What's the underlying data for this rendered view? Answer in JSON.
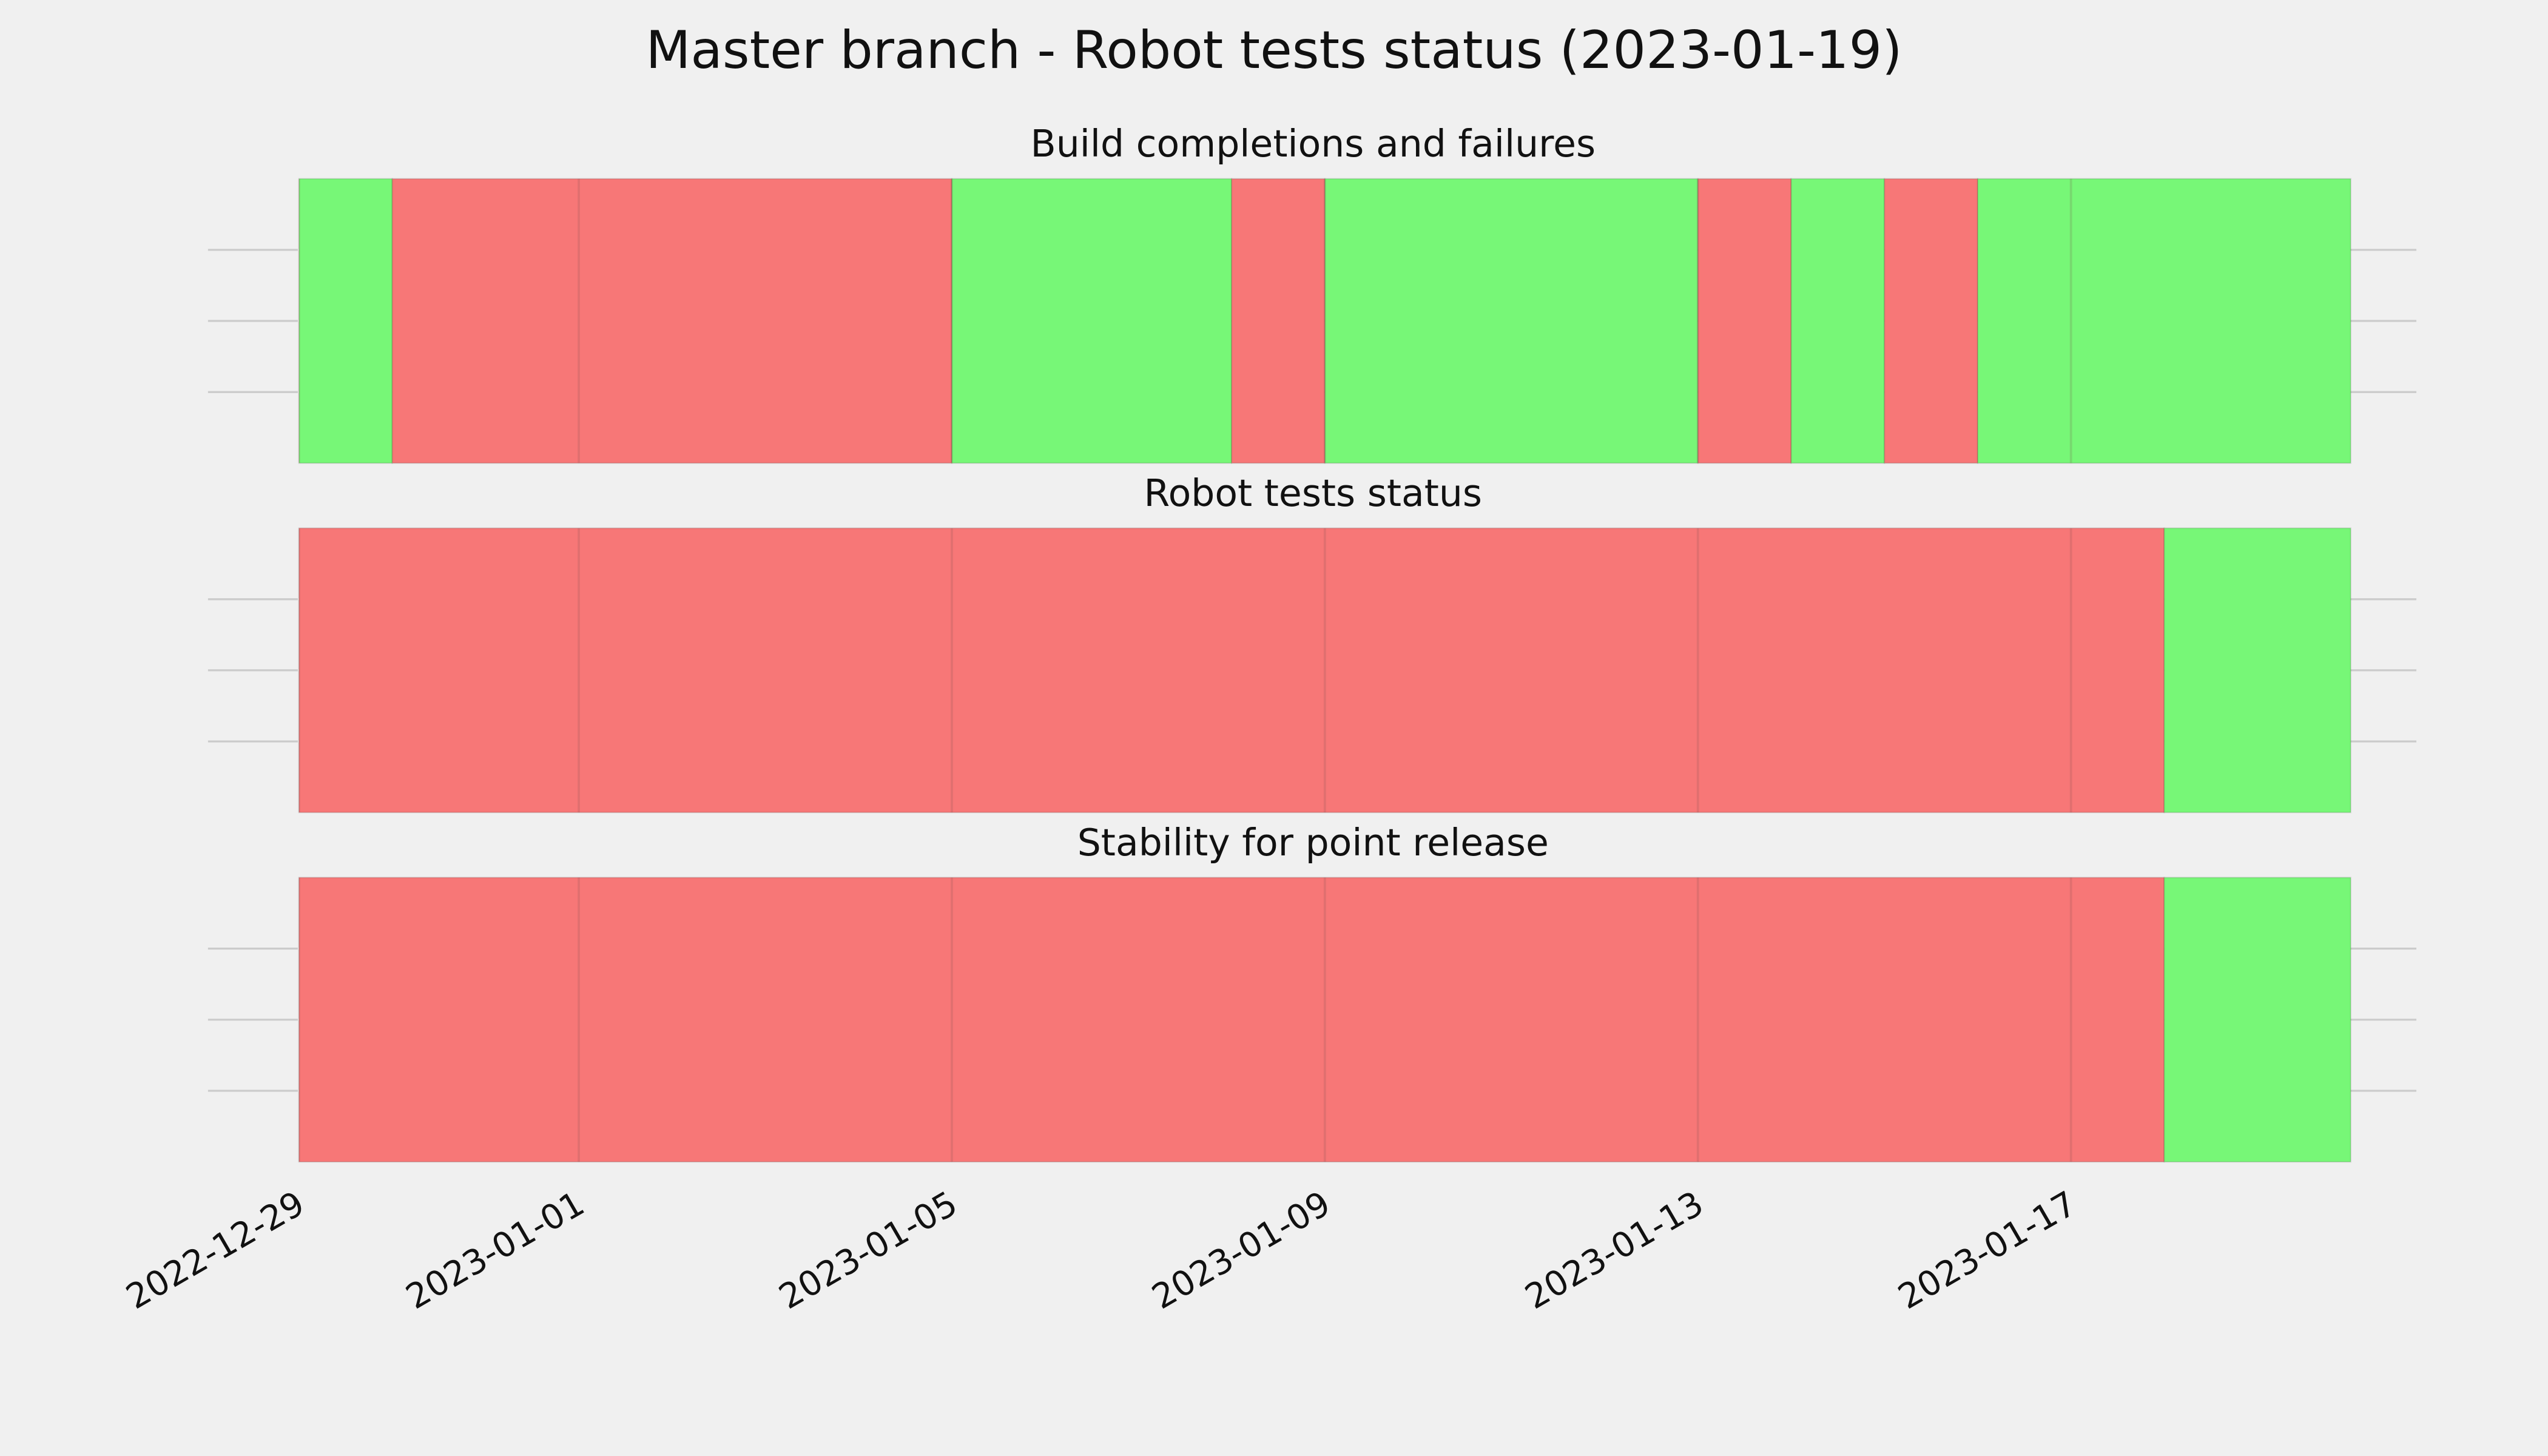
{
  "chart_data": {
    "type": "timeline",
    "title": "Master branch - Robot tests status (2023-01-19)",
    "xlim": [
      "2022-12-29",
      "2023-01-21"
    ],
    "xticks": [
      "2022-12-29",
      "2023-01-01",
      "2023-01-05",
      "2023-01-09",
      "2023-01-13",
      "2023-01-17"
    ],
    "ylim": [
      0,
      1
    ],
    "yticks": [
      0.25,
      0.5,
      0.75
    ],
    "grid": true,
    "panels": [
      {
        "title": "Build completions and failures",
        "segments": [
          {
            "start": "2022-12-29",
            "end": "2022-12-30",
            "color": "#77f777"
          },
          {
            "start": "2022-12-30",
            "end": "2023-01-05",
            "color": "#f77777"
          },
          {
            "start": "2023-01-05",
            "end": "2023-01-08",
            "color": "#77f777"
          },
          {
            "start": "2023-01-08",
            "end": "2023-01-09",
            "color": "#f77777"
          },
          {
            "start": "2023-01-09",
            "end": "2023-01-13",
            "color": "#77f777"
          },
          {
            "start": "2023-01-13",
            "end": "2023-01-14",
            "color": "#f77777"
          },
          {
            "start": "2023-01-14",
            "end": "2023-01-15",
            "color": "#77f777"
          },
          {
            "start": "2023-01-15",
            "end": "2023-01-16",
            "color": "#f77777"
          },
          {
            "start": "2023-01-16",
            "end": "2023-01-20",
            "color": "#77f777"
          }
        ]
      },
      {
        "title": "Robot tests status",
        "segments": [
          {
            "start": "2022-12-29",
            "end": "2023-01-18",
            "color": "#f77777"
          },
          {
            "start": "2023-01-18",
            "end": "2023-01-20",
            "color": "#77f777"
          }
        ]
      },
      {
        "title": "Stability for point release",
        "segments": [
          {
            "start": "2022-12-29",
            "end": "2023-01-18",
            "color": "#f77777"
          },
          {
            "start": "2023-01-18",
            "end": "2023-01-20",
            "color": "#77f777"
          }
        ]
      }
    ]
  }
}
